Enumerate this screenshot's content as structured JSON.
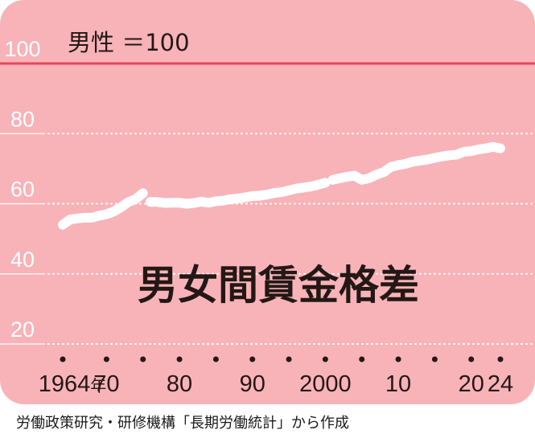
{
  "chart_data": {
    "type": "line",
    "title": "男女間賃金格差",
    "reference_label": "男性 ＝100",
    "reference_value": 100,
    "ylim": [
      10,
      105
    ],
    "yticks": [
      20,
      40,
      60,
      80,
      100
    ],
    "xlim": [
      1962,
      2026
    ],
    "xticks": [
      {
        "x": 1964,
        "label": "1964",
        "suffix": "年"
      },
      {
        "x": 1970,
        "label": "70"
      },
      {
        "x": 1980,
        "label": "80"
      },
      {
        "x": 1990,
        "label": "90"
      },
      {
        "x": 2000,
        "label": "2000"
      },
      {
        "x": 2010,
        "label": "10"
      },
      {
        "x": 2020,
        "label": "20"
      },
      {
        "x": 2024,
        "label": "24"
      }
    ],
    "xdots": [
      1964,
      1970,
      1975,
      1980,
      1985,
      1990,
      1995,
      2000,
      2005,
      2010,
      2015,
      2020,
      2024
    ],
    "grid": true,
    "colors": {
      "background": "#f8b3b8",
      "reference_line": "#e5475a",
      "line": "#ffffff",
      "grid": "#ffffff",
      "text": "#231815"
    },
    "series": [
      {
        "segments": [
          [
            [
              1964,
              54.0
            ],
            [
              1965,
              55.5
            ],
            [
              1966,
              55.8
            ],
            [
              1967,
              56.0
            ],
            [
              1968,
              56.0
            ],
            [
              1969,
              56.6
            ],
            [
              1970,
              57.0
            ],
            [
              1971,
              57.8
            ],
            [
              1972,
              59.0
            ],
            [
              1973,
              60.5
            ],
            [
              1974,
              61.3
            ],
            [
              1975,
              63.0
            ]
          ],
          [
            [
              1976,
              60.5
            ],
            [
              1977,
              60.5
            ],
            [
              1978,
              60.2
            ],
            [
              1979,
              60.3
            ],
            [
              1980,
              60.3
            ],
            [
              1981,
              60.0
            ],
            [
              1982,
              60.2
            ],
            [
              1983,
              60.6
            ],
            [
              1984,
              60.3
            ],
            [
              1985,
              60.7
            ],
            [
              1986,
              60.9
            ],
            [
              1987,
              61.3
            ],
            [
              1988,
              61.5
            ],
            [
              1989,
              61.8
            ],
            [
              1990,
              62.2
            ],
            [
              1991,
              62.3
            ],
            [
              1992,
              62.6
            ],
            [
              1993,
              63.1
            ],
            [
              1994,
              63.3
            ],
            [
              1995,
              63.8
            ],
            [
              1996,
              64.3
            ],
            [
              1997,
              64.6
            ],
            [
              1998,
              64.9
            ],
            [
              1999,
              65.4
            ],
            [
              2000,
              66.0
            ]
          ],
          [
            [
              2001,
              66.8
            ],
            [
              2002,
              67.3
            ],
            [
              2003,
              67.7
            ],
            [
              2004,
              68.0
            ],
            [
              2005,
              66.8
            ],
            [
              2006,
              67.3
            ],
            [
              2007,
              68.3
            ],
            [
              2008,
              69.0
            ],
            [
              2009,
              70.5
            ],
            [
              2010,
              71.0
            ],
            [
              2011,
              71.4
            ],
            [
              2012,
              72.0
            ],
            [
              2013,
              72.3
            ],
            [
              2014,
              72.6
            ],
            [
              2015,
              73.1
            ],
            [
              2016,
              73.5
            ],
            [
              2017,
              73.8
            ],
            [
              2018,
              74.0
            ],
            [
              2019,
              74.8
            ],
            [
              2020,
              75.0
            ],
            [
              2021,
              75.5
            ],
            [
              2022,
              75.8
            ],
            [
              2023,
              76.2
            ],
            [
              2024,
              75.8
            ]
          ]
        ]
      }
    ]
  },
  "source": "労働政策研究・研修機構「長期労働統計」から作成"
}
